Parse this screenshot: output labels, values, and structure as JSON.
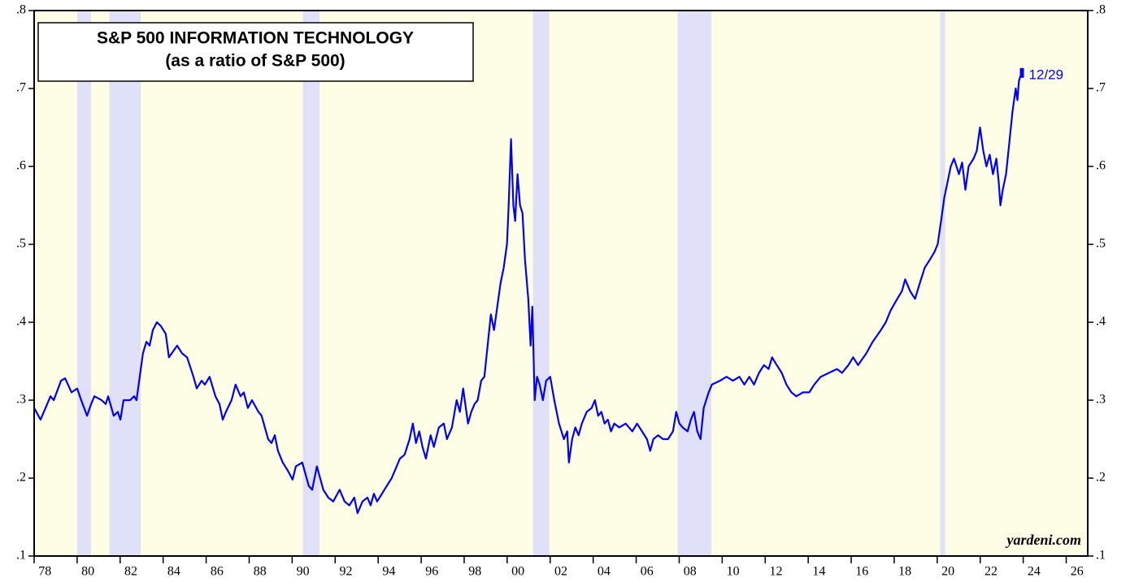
{
  "chart_data": {
    "type": "line",
    "title": "S&P 500 INFORMATION TECHNOLOGY",
    "subtitle": "(as a ratio of S&P 500)",
    "end_label": "12/29",
    "source": "yardeni.com",
    "color": "#0000ff",
    "background": "#fefee6",
    "recession_color": "#e0e0f8",
    "recessions": [
      [
        1980.0,
        1980.65
      ],
      [
        1981.5,
        1982.95
      ],
      [
        1990.5,
        1991.27
      ],
      [
        2001.2,
        2001.96
      ],
      [
        2007.93,
        2009.5
      ],
      [
        2020.14,
        2020.37
      ]
    ],
    "x": [
      1978.0,
      1978.3,
      1978.76,
      1978.91,
      1979.25,
      1979.44,
      1979.74,
      1980.0,
      1980.19,
      1980.46,
      1980.65,
      1980.8,
      1981.14,
      1981.33,
      1981.44,
      1981.7,
      1981.89,
      1982.01,
      1982.16,
      1982.46,
      1982.65,
      1982.76,
      1982.91,
      1983.06,
      1983.22,
      1983.37,
      1983.52,
      1983.71,
      1983.9,
      1984.12,
      1984.27,
      1984.65,
      1984.88,
      1985.11,
      1985.41,
      1985.56,
      1985.79,
      1985.94,
      1986.16,
      1986.43,
      1986.62,
      1986.77,
      1986.92,
      1987.18,
      1987.37,
      1987.6,
      1987.75,
      1987.94,
      1988.13,
      1988.43,
      1988.58,
      1988.73,
      1988.88,
      1989.04,
      1989.19,
      1989.34,
      1989.56,
      1989.79,
      1990.02,
      1990.17,
      1990.47,
      1990.62,
      1990.77,
      1990.93,
      1991.15,
      1991.3,
      1991.45,
      1991.68,
      1991.91,
      1992.21,
      1992.44,
      1992.66,
      1992.89,
      1993.04,
      1993.27,
      1993.5,
      1993.65,
      1993.8,
      1993.95,
      1994.18,
      1994.4,
      1994.63,
      1994.86,
      1995.01,
      1995.23,
      1995.46,
      1995.61,
      1995.76,
      1995.91,
      1996.06,
      1996.22,
      1996.44,
      1996.59,
      1996.82,
      1997.05,
      1997.2,
      1997.43,
      1997.65,
      1997.8,
      1997.95,
      1998.18,
      1998.33,
      1998.48,
      1998.63,
      1998.79,
      1998.94,
      1999.09,
      1999.24,
      1999.39,
      1999.54,
      1999.69,
      1999.84,
      1999.99,
      2000.07,
      2000.18,
      2000.29,
      2000.37,
      2000.48,
      2000.6,
      2000.71,
      2000.83,
      2000.98,
      2001.09,
      2001.17,
      2001.28,
      2001.39,
      2001.51,
      2001.66,
      2001.81,
      2002.0,
      2002.19,
      2002.41,
      2002.64,
      2002.79,
      2002.87,
      2003.02,
      2003.17,
      2003.32,
      2003.47,
      2003.7,
      2003.93,
      2004.08,
      2004.23,
      2004.38,
      2004.53,
      2004.68,
      2004.83,
      2004.98,
      2005.21,
      2005.51,
      2005.82,
      2006.04,
      2006.27,
      2006.5,
      2006.65,
      2006.8,
      2007.02,
      2007.25,
      2007.48,
      2007.71,
      2007.86,
      2008.01,
      2008.16,
      2008.39,
      2008.54,
      2008.69,
      2008.84,
      2008.99,
      2009.14,
      2009.37,
      2009.52,
      2009.9,
      2010.2,
      2010.5,
      2010.8,
      2011.03,
      2011.26,
      2011.48,
      2011.71,
      2011.94,
      2012.16,
      2012.32,
      2012.54,
      2012.77,
      2012.99,
      2013.22,
      2013.45,
      2013.75,
      2014.05,
      2014.28,
      2014.58,
      2014.96,
      2015.34,
      2015.57,
      2015.87,
      2016.09,
      2016.32,
      2016.7,
      2017.0,
      2017.38,
      2017.61,
      2017.83,
      2018.14,
      2018.36,
      2018.51,
      2018.74,
      2018.97,
      2019.19,
      2019.42,
      2019.65,
      2019.87,
      2020.02,
      2020.18,
      2020.33,
      2020.48,
      2020.63,
      2020.78,
      2021.01,
      2021.16,
      2021.31,
      2021.46,
      2021.69,
      2021.84,
      2021.99,
      2022.14,
      2022.29,
      2022.44,
      2022.59,
      2022.75,
      2022.86,
      2022.94,
      2023.05,
      2023.2,
      2023.35,
      2023.5,
      2023.65,
      2023.73,
      2023.8,
      2023.92
    ],
    "values": [
      0.29,
      0.275,
      0.305,
      0.3,
      0.325,
      0.328,
      0.31,
      0.315,
      0.3,
      0.28,
      0.295,
      0.305,
      0.3,
      0.295,
      0.305,
      0.28,
      0.285,
      0.275,
      0.3,
      0.3,
      0.305,
      0.3,
      0.33,
      0.36,
      0.375,
      0.37,
      0.39,
      0.4,
      0.395,
      0.385,
      0.355,
      0.37,
      0.36,
      0.355,
      0.33,
      0.315,
      0.325,
      0.32,
      0.33,
      0.305,
      0.295,
      0.275,
      0.285,
      0.3,
      0.32,
      0.305,
      0.31,
      0.29,
      0.3,
      0.285,
      0.28,
      0.265,
      0.25,
      0.245,
      0.255,
      0.235,
      0.22,
      0.21,
      0.198,
      0.215,
      0.22,
      0.205,
      0.19,
      0.185,
      0.215,
      0.2,
      0.185,
      0.175,
      0.17,
      0.185,
      0.17,
      0.165,
      0.175,
      0.155,
      0.17,
      0.175,
      0.165,
      0.18,
      0.17,
      0.18,
      0.19,
      0.2,
      0.215,
      0.225,
      0.23,
      0.25,
      0.27,
      0.245,
      0.26,
      0.24,
      0.225,
      0.255,
      0.24,
      0.265,
      0.27,
      0.25,
      0.265,
      0.3,
      0.285,
      0.315,
      0.27,
      0.285,
      0.295,
      0.3,
      0.325,
      0.33,
      0.37,
      0.41,
      0.39,
      0.42,
      0.45,
      0.47,
      0.5,
      0.55,
      0.635,
      0.55,
      0.53,
      0.59,
      0.55,
      0.54,
      0.48,
      0.43,
      0.37,
      0.42,
      0.3,
      0.33,
      0.32,
      0.3,
      0.325,
      0.33,
      0.3,
      0.27,
      0.25,
      0.26,
      0.22,
      0.25,
      0.265,
      0.255,
      0.27,
      0.285,
      0.29,
      0.3,
      0.28,
      0.285,
      0.27,
      0.275,
      0.26,
      0.27,
      0.265,
      0.27,
      0.26,
      0.27,
      0.26,
      0.25,
      0.235,
      0.25,
      0.255,
      0.25,
      0.25,
      0.26,
      0.285,
      0.27,
      0.265,
      0.26,
      0.275,
      0.285,
      0.26,
      0.25,
      0.29,
      0.31,
      0.32,
      0.325,
      0.33,
      0.325,
      0.33,
      0.32,
      0.33,
      0.32,
      0.335,
      0.345,
      0.34,
      0.355,
      0.345,
      0.335,
      0.32,
      0.31,
      0.305,
      0.31,
      0.31,
      0.32,
      0.33,
      0.335,
      0.34,
      0.335,
      0.345,
      0.355,
      0.345,
      0.36,
      0.375,
      0.39,
      0.4,
      0.415,
      0.43,
      0.44,
      0.455,
      0.44,
      0.43,
      0.45,
      0.47,
      0.48,
      0.49,
      0.5,
      0.53,
      0.56,
      0.58,
      0.6,
      0.61,
      0.59,
      0.605,
      0.57,
      0.6,
      0.61,
      0.62,
      0.65,
      0.62,
      0.6,
      0.615,
      0.59,
      0.61,
      0.58,
      0.55,
      0.57,
      0.59,
      0.63,
      0.67,
      0.7,
      0.685,
      0.71,
      0.72
    ],
    "xlim": [
      1978,
      2027
    ],
    "xticks": [
      {
        "value": 1978,
        "label": "78"
      },
      {
        "value": 1980,
        "label": "80"
      },
      {
        "value": 1982,
        "label": "82"
      },
      {
        "value": 1984,
        "label": "84"
      },
      {
        "value": 1986,
        "label": "86"
      },
      {
        "value": 1988,
        "label": "88"
      },
      {
        "value": 1990,
        "label": "90"
      },
      {
        "value": 1992,
        "label": "92"
      },
      {
        "value": 1994,
        "label": "94"
      },
      {
        "value": 1996,
        "label": "96"
      },
      {
        "value": 1998,
        "label": "98"
      },
      {
        "value": 2000,
        "label": "00"
      },
      {
        "value": 2002,
        "label": "02"
      },
      {
        "value": 2004,
        "label": "04"
      },
      {
        "value": 2006,
        "label": "06"
      },
      {
        "value": 2008,
        "label": "08"
      },
      {
        "value": 2010,
        "label": "10"
      },
      {
        "value": 2012,
        "label": "12"
      },
      {
        "value": 2014,
        "label": "14"
      },
      {
        "value": 2016,
        "label": "16"
      },
      {
        "value": 2018,
        "label": "18"
      },
      {
        "value": 2020,
        "label": "20"
      },
      {
        "value": 2022,
        "label": "22"
      },
      {
        "value": 2024,
        "label": "24"
      },
      {
        "value": 2026,
        "label": "26"
      }
    ],
    "ylim": [
      0.1,
      0.8
    ],
    "yticks": [
      {
        "value": 0.1,
        "label": ".1"
      },
      {
        "value": 0.2,
        "label": ".2"
      },
      {
        "value": 0.3,
        "label": ".3"
      },
      {
        "value": 0.4,
        "label": ".4"
      },
      {
        "value": 0.5,
        "label": ".5"
      },
      {
        "value": 0.6,
        "label": ".6"
      },
      {
        "value": 0.7,
        "label": ".7"
      },
      {
        "value": 0.8,
        "label": ".8"
      }
    ]
  }
}
